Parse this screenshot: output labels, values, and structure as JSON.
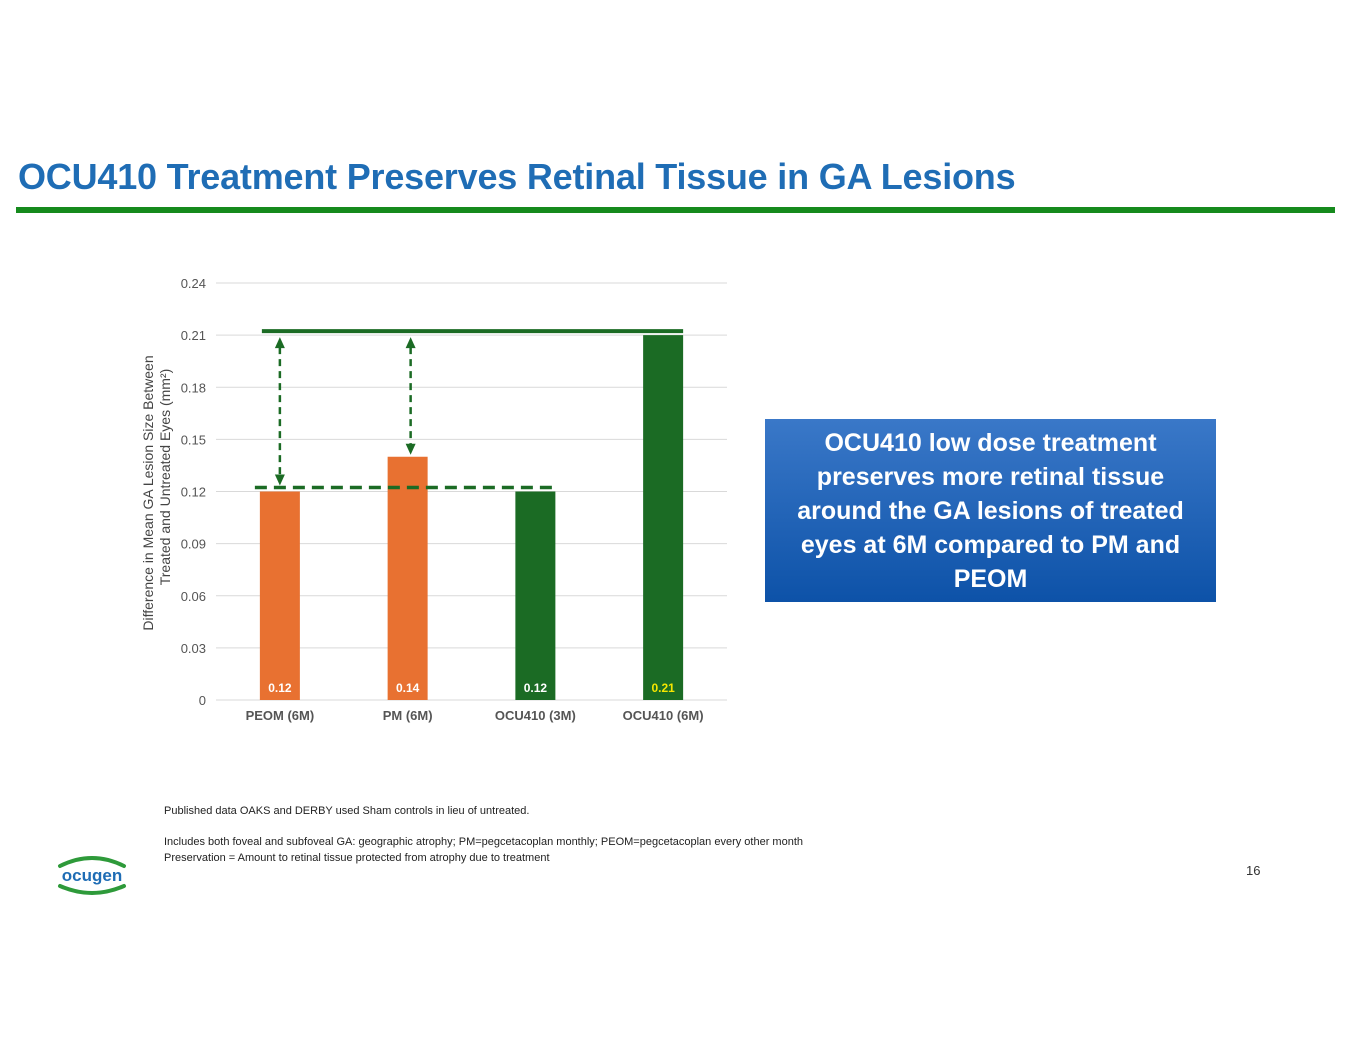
{
  "title": "OCU410 Treatment Preserves Retinal Tissue in GA Lesions",
  "callout": "OCU410 low dose treatment preserves more retinal tissue around the GA lesions of treated eyes at 6M compared to PM and PEOM",
  "footnotes": [
    "Published data  OAKS and DERBY used Sham controls in lieu of untreated.",
    "Includes both foveal and subfoveal GA: geographic atrophy; PM=pegcetacoplan monthly; PEOM=pegcetacoplan every other month",
    "Preservation = Amount to retinal tissue protected from atrophy due to treatment"
  ],
  "page_number": "16",
  "logo_text": "ocugen",
  "colors": {
    "title": "#1f6db5",
    "rule": "#168a1d",
    "orange": "#e87131",
    "green": "#1b6b24",
    "highlight_label": "#f5e600"
  },
  "chart_data": {
    "type": "bar",
    "categories": [
      "PEOM (6M)",
      "PM (6M)",
      "OCU410 (3M)",
      "OCU410 (6M)"
    ],
    "values": [
      0.12,
      0.14,
      0.12,
      0.21
    ],
    "value_labels": [
      "0.12",
      "0.14",
      "0.12",
      "0.21"
    ],
    "bar_colors": [
      "#e87131",
      "#e87131",
      "#1b6b24",
      "#1b6b24"
    ],
    "label_colors": [
      "#ffffff",
      "#ffffff",
      "#ffffff",
      "#f5e600"
    ],
    "ylabel_lines": [
      "Difference in Mean GA Lesion Size Between",
      "Treated and Untreated Eyes (mm²)"
    ],
    "xlabel": "",
    "ylim": [
      0,
      0.24
    ],
    "yticks": [
      "0",
      "0.03",
      "0.06",
      "0.09",
      "0.12",
      "0.15",
      "0.18",
      "0.21",
      "0.24"
    ],
    "grid": true,
    "reference_lines": {
      "upper_solid": 0.21,
      "lower_dashed": 0.12
    },
    "arrows": [
      {
        "category": "PEOM (6M)",
        "from": 0.21,
        "to": 0.12
      },
      {
        "category": "PM (6M)",
        "from": 0.21,
        "to": 0.14
      }
    ]
  }
}
